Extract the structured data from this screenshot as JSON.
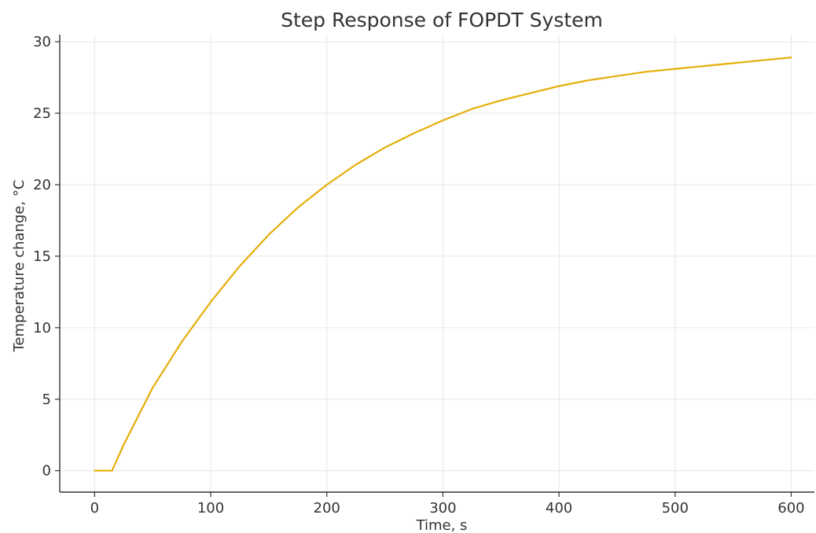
{
  "chart_data": {
    "type": "line",
    "title": "Step Response of FOPDT System",
    "xlabel": "Time, s",
    "ylabel": "Temperature change, °C",
    "xlim": [
      -30,
      620
    ],
    "ylim": [
      -1.5,
      30.5
    ],
    "xticks": [
      0,
      100,
      200,
      300,
      400,
      500,
      600
    ],
    "yticks": [
      0,
      5,
      10,
      15,
      20,
      25,
      30
    ],
    "grid": true,
    "series": [
      {
        "color": "#E5AE0A",
        "x": [
          0,
          15,
          25,
          50,
          75,
          100,
          125,
          150,
          175,
          200,
          225,
          250,
          275,
          300,
          325,
          350,
          375,
          400,
          425,
          450,
          475,
          500,
          525,
          550,
          575,
          600
        ],
        "y": [
          0,
          0,
          1.8,
          5.8,
          9.0,
          11.8,
          14.3,
          16.5,
          18.4,
          20.0,
          21.4,
          22.6,
          23.6,
          24.5,
          25.3,
          25.9,
          26.4,
          26.9,
          27.3,
          27.6,
          27.9,
          28.1,
          28.3,
          28.5,
          28.7,
          28.9
        ]
      }
    ]
  }
}
